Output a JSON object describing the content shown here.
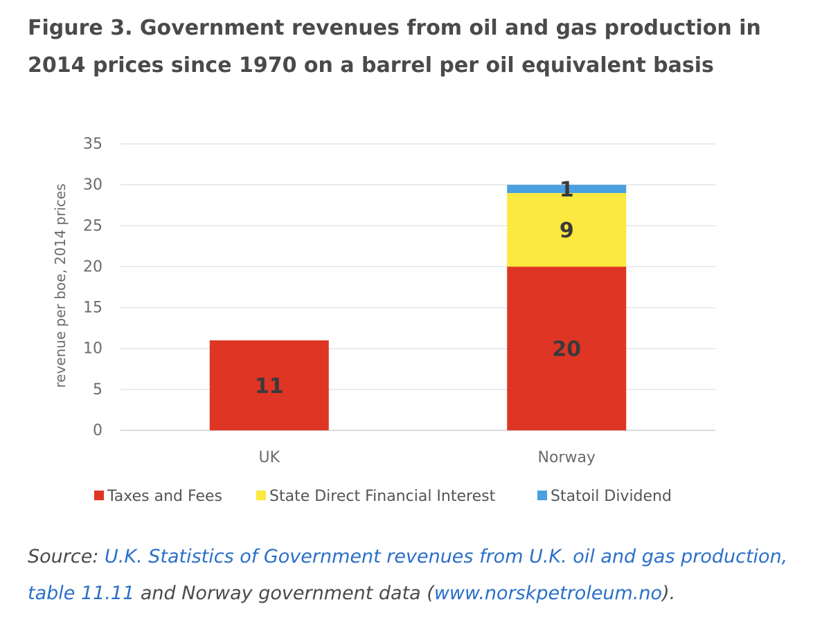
{
  "figure": {
    "title": "Figure 3. Government revenues from oil and gas production in 2014 prices since 1970 on a barrel per oil equivalent basis"
  },
  "chart_data": {
    "type": "bar",
    "stacked": true,
    "categories": [
      "UK",
      "Norway"
    ],
    "series": [
      {
        "name": "Taxes and Fees",
        "values": [
          11,
          20
        ],
        "labels": [
          "11",
          "20"
        ],
        "color": "#de3525"
      },
      {
        "name": "State Direct Financial Interest",
        "values": [
          0,
          9
        ],
        "labels": [
          "",
          "9"
        ],
        "color": "#fbe93f"
      },
      {
        "name": "Statoil Dividend",
        "values": [
          0,
          1
        ],
        "labels": [
          "",
          "1"
        ],
        "color": "#4a9fe0"
      }
    ],
    "title": "",
    "xlabel": "",
    "ylabel": "revenue per boe, 2014 prices",
    "ylim": [
      0,
      35
    ],
    "yticks": [
      0,
      5,
      10,
      15,
      20,
      25,
      30,
      35
    ],
    "grid": true,
    "legend": "bottom"
  },
  "source": {
    "prefix": "Source: ",
    "link1": "U.K. Statistics of Government revenues from U.K. oil and gas production, table 11.11",
    "middle": " and Norway government data (",
    "link2": "www.norskpetroleum.no",
    "suffix": ")."
  }
}
